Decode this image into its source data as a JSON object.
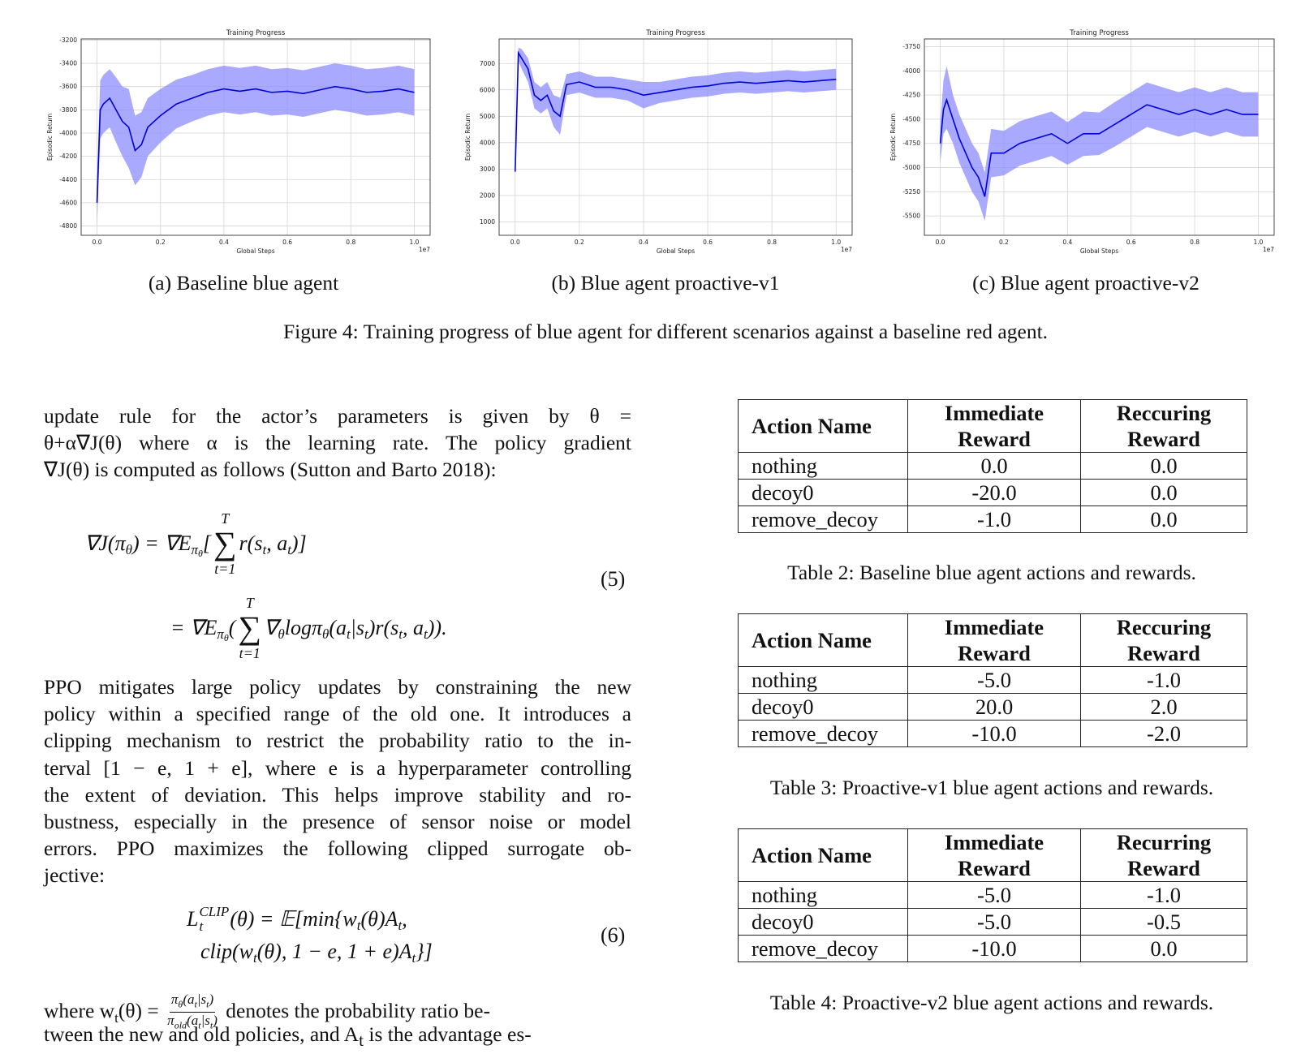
{
  "chart_data": [
    {
      "type": "line",
      "title": "Training Progress",
      "xlabel": "Global Steps",
      "ylabel": "Episodic Return",
      "x_offset_label": "1e7",
      "x": [
        0,
        0.01,
        0.02,
        0.04,
        0.06,
        0.08,
        0.1,
        0.12,
        0.14,
        0.16,
        0.2,
        0.25,
        0.3,
        0.35,
        0.4,
        0.45,
        0.5,
        0.55,
        0.6,
        0.65,
        0.7,
        0.75,
        0.8,
        0.85,
        0.9,
        0.95,
        1.0
      ],
      "values": [
        -4600,
        -3800,
        -3750,
        -3700,
        -3800,
        -3900,
        -3950,
        -4150,
        -4100,
        -3950,
        -3850,
        -3750,
        -3700,
        -3650,
        -3620,
        -3640,
        -3620,
        -3650,
        -3640,
        -3660,
        -3630,
        -3600,
        -3620,
        -3650,
        -3640,
        -3620,
        -3650
      ],
      "lower": [
        -4800,
        -4050,
        -4000,
        -3950,
        -4080,
        -4200,
        -4300,
        -4450,
        -4380,
        -4200,
        -4080,
        -3960,
        -3900,
        -3850,
        -3820,
        -3840,
        -3820,
        -3850,
        -3840,
        -3860,
        -3830,
        -3800,
        -3820,
        -3850,
        -3840,
        -3820,
        -3850
      ],
      "upper": [
        -4400,
        -3550,
        -3500,
        -3450,
        -3520,
        -3600,
        -3620,
        -3850,
        -3820,
        -3700,
        -3620,
        -3540,
        -3500,
        -3450,
        -3420,
        -3440,
        -3420,
        -3450,
        -3440,
        -3460,
        -3430,
        -3400,
        -3420,
        -3450,
        -3440,
        -3420,
        -3450
      ],
      "color": "#0000dd",
      "band_color": "#8c8cff",
      "grid": true,
      "xlim": [
        -0.05,
        1.05
      ],
      "xticks": [
        {
          "value": 0,
          "label": "0.0"
        },
        0.2,
        0.4,
        0.6,
        0.8,
        {
          "value": 1,
          "label": "1.0"
        }
      ],
      "ylim": [
        -4880,
        -3190
      ],
      "yticks": [
        -4800,
        -4600,
        -4400,
        -4200,
        -4000,
        -3800,
        -3600,
        -3400,
        -3200
      ]
    },
    {
      "type": "line",
      "title": "Training Progress",
      "xlabel": "Global Steps",
      "ylabel": "Episodic Return",
      "x_offset_label": "1e7",
      "x": [
        0,
        0.01,
        0.02,
        0.04,
        0.06,
        0.08,
        0.1,
        0.12,
        0.14,
        0.16,
        0.2,
        0.25,
        0.3,
        0.35,
        0.4,
        0.45,
        0.5,
        0.55,
        0.6,
        0.65,
        0.7,
        0.75,
        0.8,
        0.85,
        0.9,
        0.95,
        1.0
      ],
      "values": [
        2900,
        7400,
        7200,
        6800,
        5800,
        5600,
        5800,
        5200,
        5000,
        6200,
        6300,
        6100,
        6100,
        6000,
        5800,
        5900,
        6000,
        6100,
        6150,
        6250,
        6300,
        6250,
        6300,
        6350,
        6300,
        6350,
        6400
      ],
      "lower": [
        2700,
        7100,
        6800,
        6300,
        5300,
        5100,
        5300,
        4600,
        4300,
        5800,
        5900,
        5700,
        5700,
        5600,
        5300,
        5500,
        5600,
        5700,
        5750,
        5850,
        5900,
        5850,
        5900,
        5950,
        5900,
        5950,
        6000
      ],
      "upper": [
        3100,
        7600,
        7550,
        7200,
        6300,
        6100,
        6300,
        5800,
        5700,
        6600,
        6700,
        6500,
        6500,
        6400,
        6300,
        6300,
        6400,
        6500,
        6550,
        6650,
        6700,
        6650,
        6700,
        6750,
        6700,
        6750,
        6800
      ],
      "color": "#0000dd",
      "band_color": "#8c8cff",
      "grid": true,
      "xlim": [
        -0.05,
        1.05
      ],
      "xticks": [
        {
          "value": 0,
          "label": "0.0"
        },
        0.2,
        0.4,
        0.6,
        0.8,
        {
          "value": 1,
          "label": "1.0"
        }
      ],
      "ylim": [
        490,
        7930
      ],
      "yticks": [
        1000,
        2000,
        3000,
        4000,
        5000,
        6000,
        7000
      ]
    },
    {
      "type": "line",
      "title": "Training Progress",
      "xlabel": "Global Steps",
      "ylabel": "Episodic Return",
      "x_offset_label": "1e7",
      "x": [
        0,
        0.01,
        0.02,
        0.04,
        0.06,
        0.08,
        0.1,
        0.12,
        0.14,
        0.16,
        0.2,
        0.25,
        0.3,
        0.35,
        0.4,
        0.45,
        0.5,
        0.55,
        0.6,
        0.65,
        0.7,
        0.75,
        0.8,
        0.85,
        0.9,
        0.95,
        1.0
      ],
      "values": [
        -4750,
        -4400,
        -4300,
        -4500,
        -4700,
        -4850,
        -5000,
        -5100,
        -5300,
        -4850,
        -4850,
        -4750,
        -4700,
        -4650,
        -4750,
        -4650,
        -4650,
        -4550,
        -4450,
        -4350,
        -4400,
        -4450,
        -4400,
        -4450,
        -4400,
        -4450,
        -4450
      ],
      "lower": [
        -4950,
        -4650,
        -4600,
        -4750,
        -4950,
        -5100,
        -5250,
        -5350,
        -5550,
        -5100,
        -5080,
        -4980,
        -4930,
        -4880,
        -4970,
        -4880,
        -4870,
        -4780,
        -4680,
        -4580,
        -4630,
        -4680,
        -4630,
        -4680,
        -4630,
        -4680,
        -4680
      ],
      "upper": [
        -4550,
        -4100,
        -3950,
        -4250,
        -4450,
        -4600,
        -4750,
        -4850,
        -5050,
        -4600,
        -4620,
        -4520,
        -4470,
        -4420,
        -4530,
        -4420,
        -4430,
        -4320,
        -4220,
        -4120,
        -4170,
        -4220,
        -4170,
        -4220,
        -4170,
        -4220,
        -4220
      ],
      "color": "#0000dd",
      "band_color": "#8c8cff",
      "grid": true,
      "xlim": [
        -0.05,
        1.05
      ],
      "xticks": [
        {
          "value": 0,
          "label": "0.0"
        },
        0.2,
        0.4,
        0.6,
        0.8,
        {
          "value": 1,
          "label": "1.0"
        }
      ],
      "ylim": [
        -5700,
        -3670
      ],
      "yticks": [
        -5500,
        -5250,
        -5000,
        -4750,
        -4500,
        -4250,
        -4000,
        -3750
      ]
    }
  ],
  "figure": {
    "subcaptions": [
      "(a) Baseline blue agent",
      "(b) Blue agent proactive-v1",
      "(c) Blue agent proactive-v2"
    ],
    "caption": "Figure 4: Training progress of blue agent for different scenarios against a baseline red agent."
  },
  "text": {
    "paragraph1": [
      "update rule for the actor’s parameters is given by θ =",
      "θ+α∇J(θ) where α is the learning rate. The policy gradient",
      "∇J(θ) is computed as follows (Sutton and Barto 2018):"
    ],
    "paragraph2": [
      "PPO mitigates large policy updates by constraining the new",
      "policy within a specified range of the old one. It introduces a",
      "clipping mechanism to restrict the probability ratio to the in-",
      "terval [1 − e, 1 + e], where e is a hyperparameter controlling",
      "the extent of deviation. This helps improve stability and ro-",
      "bustness, especially in the presence of sensor noise or model",
      "errors. PPO maximizes the following clipped surrogate ob-",
      "jective:"
    ],
    "paragraph3": {
      "pre": [
        "where w",
        "t",
        "(θ) = "
      ],
      "numerator": [
        "π",
        "θ",
        "(a",
        "t",
        "|s",
        "t",
        ")"
      ],
      "denominator": [
        "π",
        "old",
        "(a",
        "t",
        "|s",
        "t",
        ")"
      ],
      "post": " denotes the probability ratio be-",
      "last_line": [
        "tween the new and old policies, and A",
        "t",
        " is the advantage es-"
      ]
    }
  },
  "equations": [
    {
      "lines": [
        [
          "∇J(π",
          "θ",
          ") = ∇E",
          "π",
          "θ",
          "[",
          "T",
          "∑",
          "t=1",
          "r(s",
          "t",
          ", a",
          "t",
          ")]"
        ],
        [
          "= ∇E",
          "π",
          "θ",
          "(",
          "T",
          "∑",
          "t=1",
          "∇",
          "θ",
          "logπ",
          "θ",
          "(a",
          "t",
          "|s",
          "t",
          ")r(s",
          "t",
          ", a",
          "t",
          "))."
        ]
      ],
      "number": "(5)"
    },
    {
      "lines": [
        [
          "L",
          "CLIP",
          "t",
          "(θ) = 𝔼[min{w",
          "t",
          "(θ)A",
          "t",
          ","
        ],
        [
          "clip(w",
          "t",
          "(θ), 1 − e, 1 + e)A",
          "t",
          "}]"
        ]
      ],
      "number": "(6)"
    }
  ],
  "tables": [
    {
      "header": [
        "Action Name",
        "Immediate Reward",
        "Reccuring Reward"
      ],
      "rows": [
        [
          "nothing",
          "0.0",
          "0.0"
        ],
        [
          "decoy0",
          "-20.0",
          "0.0"
        ],
        [
          "remove_decoy",
          "-1.0",
          "0.0"
        ]
      ],
      "caption": "Table 2: Baseline blue agent actions and rewards."
    },
    {
      "header": [
        "Action Name",
        "Immediate Reward",
        "Reccuring Reward"
      ],
      "rows": [
        [
          "nothing",
          "-5.0",
          "-1.0"
        ],
        [
          "decoy0",
          "20.0",
          "2.0"
        ],
        [
          "remove_decoy",
          "-10.0",
          "-2.0"
        ]
      ],
      "caption": "Table 3: Proactive-v1 blue agent actions and rewards."
    },
    {
      "header": [
        "Action Name",
        "Immediate Reward",
        "Recurring Reward"
      ],
      "rows": [
        [
          "nothing",
          "-5.0",
          "-1.0"
        ],
        [
          "decoy0",
          "-5.0",
          "-0.5"
        ],
        [
          "remove_decoy",
          "-10.0",
          "0.0"
        ]
      ],
      "caption": "Table 4: Proactive-v2 blue agent actions and rewards."
    }
  ]
}
